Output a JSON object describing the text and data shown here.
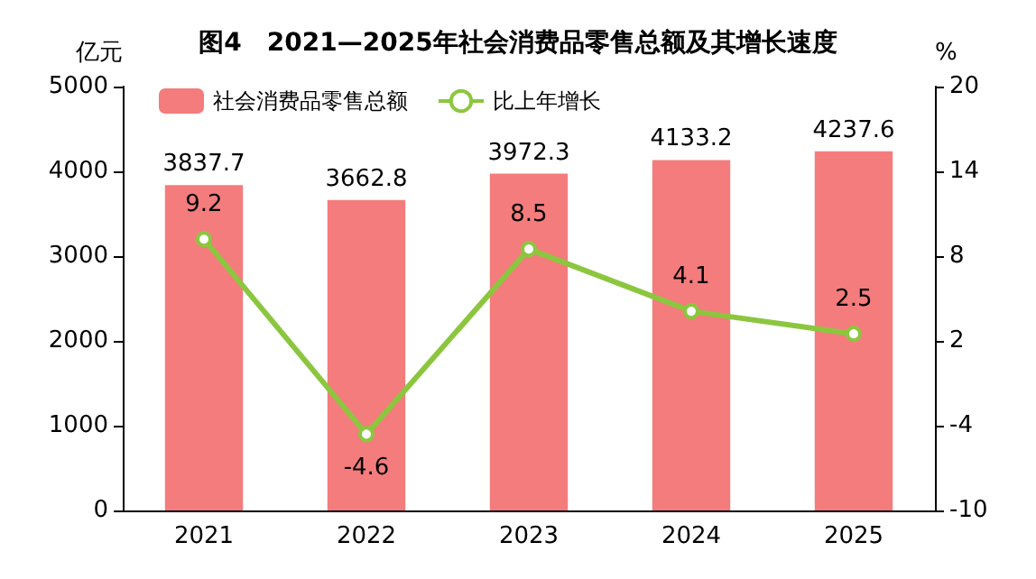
{
  "chart_data": {
    "type": "bar",
    "title": "图4　2021—2025年社会消费品零售总额及其增长速度",
    "ylabel": "亿元",
    "y2label": "%",
    "categories": [
      "2021",
      "2022",
      "2023",
      "2024",
      "2025"
    ],
    "series": [
      {
        "name": "社会消费品零售总额",
        "color": "#f47c7c",
        "values": [
          3837.7,
          3662.8,
          3972.3,
          4133.2,
          4237.6
        ]
      },
      {
        "name": "比上年增长",
        "type": "line",
        "axis": "y2",
        "color": "#8cc63f",
        "values": [
          9.2,
          -4.6,
          8.5,
          4.1,
          2.5
        ]
      }
    ],
    "ylim": [
      0,
      5000
    ],
    "yticks": [
      0,
      1000,
      2000,
      3000,
      4000,
      5000
    ],
    "y2lim": [
      -10,
      20
    ],
    "y2ticks": [
      -10,
      -4,
      2,
      8,
      14,
      20
    ],
    "data_labels": true,
    "legend": "top left",
    "grid": false,
    "marker": "circle",
    "line_style": "solid"
  }
}
